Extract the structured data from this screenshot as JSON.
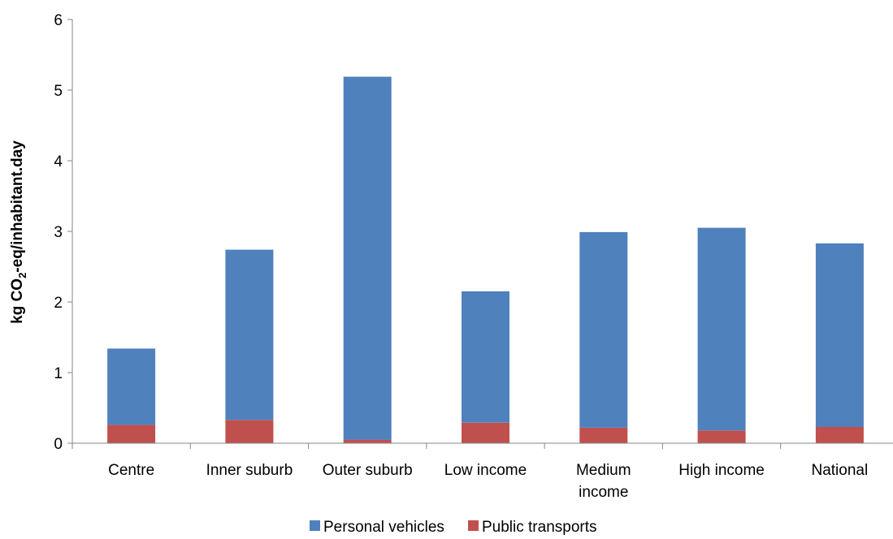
{
  "chart_data": {
    "type": "bar",
    "stacked": true,
    "categories": [
      [
        "Centre"
      ],
      [
        "Inner suburb"
      ],
      [
        "Outer suburb"
      ],
      [
        "Low income"
      ],
      [
        "Medium",
        "income"
      ],
      [
        "High income"
      ],
      [
        "National"
      ]
    ],
    "series": [
      {
        "name": "Public transports",
        "color": "#C0504D",
        "values": [
          0.26,
          0.33,
          0.05,
          0.29,
          0.22,
          0.18,
          0.23
        ]
      },
      {
        "name": "Personal vehicles",
        "color": "#4F81BD",
        "values": [
          1.08,
          2.41,
          5.14,
          1.86,
          2.77,
          2.87,
          2.6
        ]
      }
    ],
    "legend_order": [
      "Personal vehicles",
      "Public transports"
    ],
    "ylabel": {
      "prefix": "kg CO",
      "subscript": "2",
      "suffix": "-eq/inhabitant.day"
    },
    "ylim": [
      0,
      6
    ],
    "yticks": [
      "0",
      "1",
      "2",
      "3",
      "4",
      "5",
      "6"
    ],
    "grid": false,
    "legend_position": "bottom"
  }
}
